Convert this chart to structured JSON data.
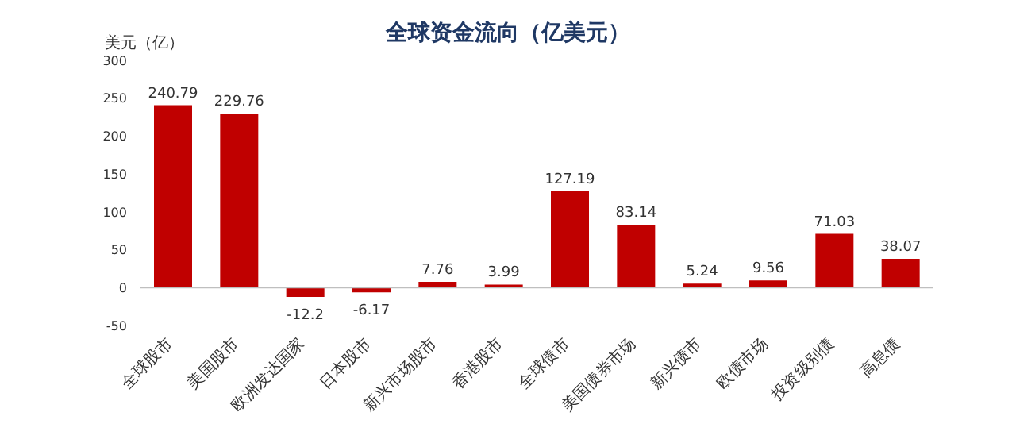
{
  "chart_data": {
    "type": "bar",
    "title": "全球资金流向（亿美元）",
    "ylabel": "美元（亿）",
    "categories": [
      "全球股市",
      "美国股市",
      "欧洲发达国家",
      "日本股市",
      "新兴市场股市",
      "香港股市",
      "全球债市",
      "美国债券市场",
      "新兴债市",
      "欧债市场",
      "投资级别债",
      "高息债"
    ],
    "values": [
      240.79,
      229.76,
      -12.2,
      -6.17,
      7.76,
      3.99,
      127.19,
      83.14,
      5.24,
      9.56,
      71.03,
      38.07
    ],
    "color": "#c00000",
    "ylim": [
      -50,
      300
    ],
    "yticks": [
      -50,
      0,
      50,
      100,
      150,
      200,
      250,
      300
    ],
    "data_labels": true
  }
}
